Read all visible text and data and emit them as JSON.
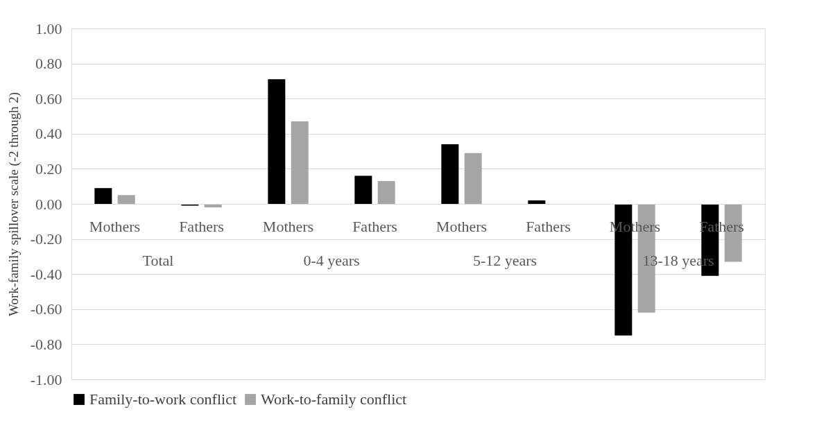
{
  "chart_data": {
    "type": "bar",
    "ylabel": "Work-family spillover scale (-2 through 2)",
    "categories": [
      "Mothers",
      "Fathers",
      "Mothers",
      "Fathers",
      "Mothers",
      "Fathers",
      "Mothers",
      "Fathers"
    ],
    "annotations": [
      "Total",
      "0-4 years",
      "5-12 years",
      "13-18 years"
    ],
    "series": [
      {
        "name": "Family-to-work conflict",
        "color": "#000000",
        "values": [
          0.09,
          -0.01,
          0.71,
          0.16,
          0.34,
          0.02,
          -0.75,
          -0.41
        ]
      },
      {
        "name": "Work-to-family conflict",
        "color": "#a5a5a5",
        "values": [
          0.05,
          -0.02,
          0.47,
          0.13,
          0.29,
          0.0,
          -0.62,
          -0.33
        ]
      }
    ],
    "ylim": [
      -1.0,
      1.0
    ],
    "yticks": [
      {
        "value": -1.0,
        "label": "-1.00"
      },
      {
        "value": -0.8,
        "label": "-0.80"
      },
      {
        "value": -0.6,
        "label": "-0.60"
      },
      {
        "value": -0.4,
        "label": "-0.40"
      },
      {
        "value": -0.2,
        "label": "-0.20"
      },
      {
        "value": 0.0,
        "label": "0.00"
      },
      {
        "value": 0.2,
        "label": "0.20"
      },
      {
        "value": 0.4,
        "label": "0.40"
      },
      {
        "value": 0.6,
        "label": "0.60"
      },
      {
        "value": 0.8,
        "label": "0.80"
      },
      {
        "value": 1.0,
        "label": "1.00"
      }
    ],
    "grid": "y",
    "legend": "bottom"
  }
}
